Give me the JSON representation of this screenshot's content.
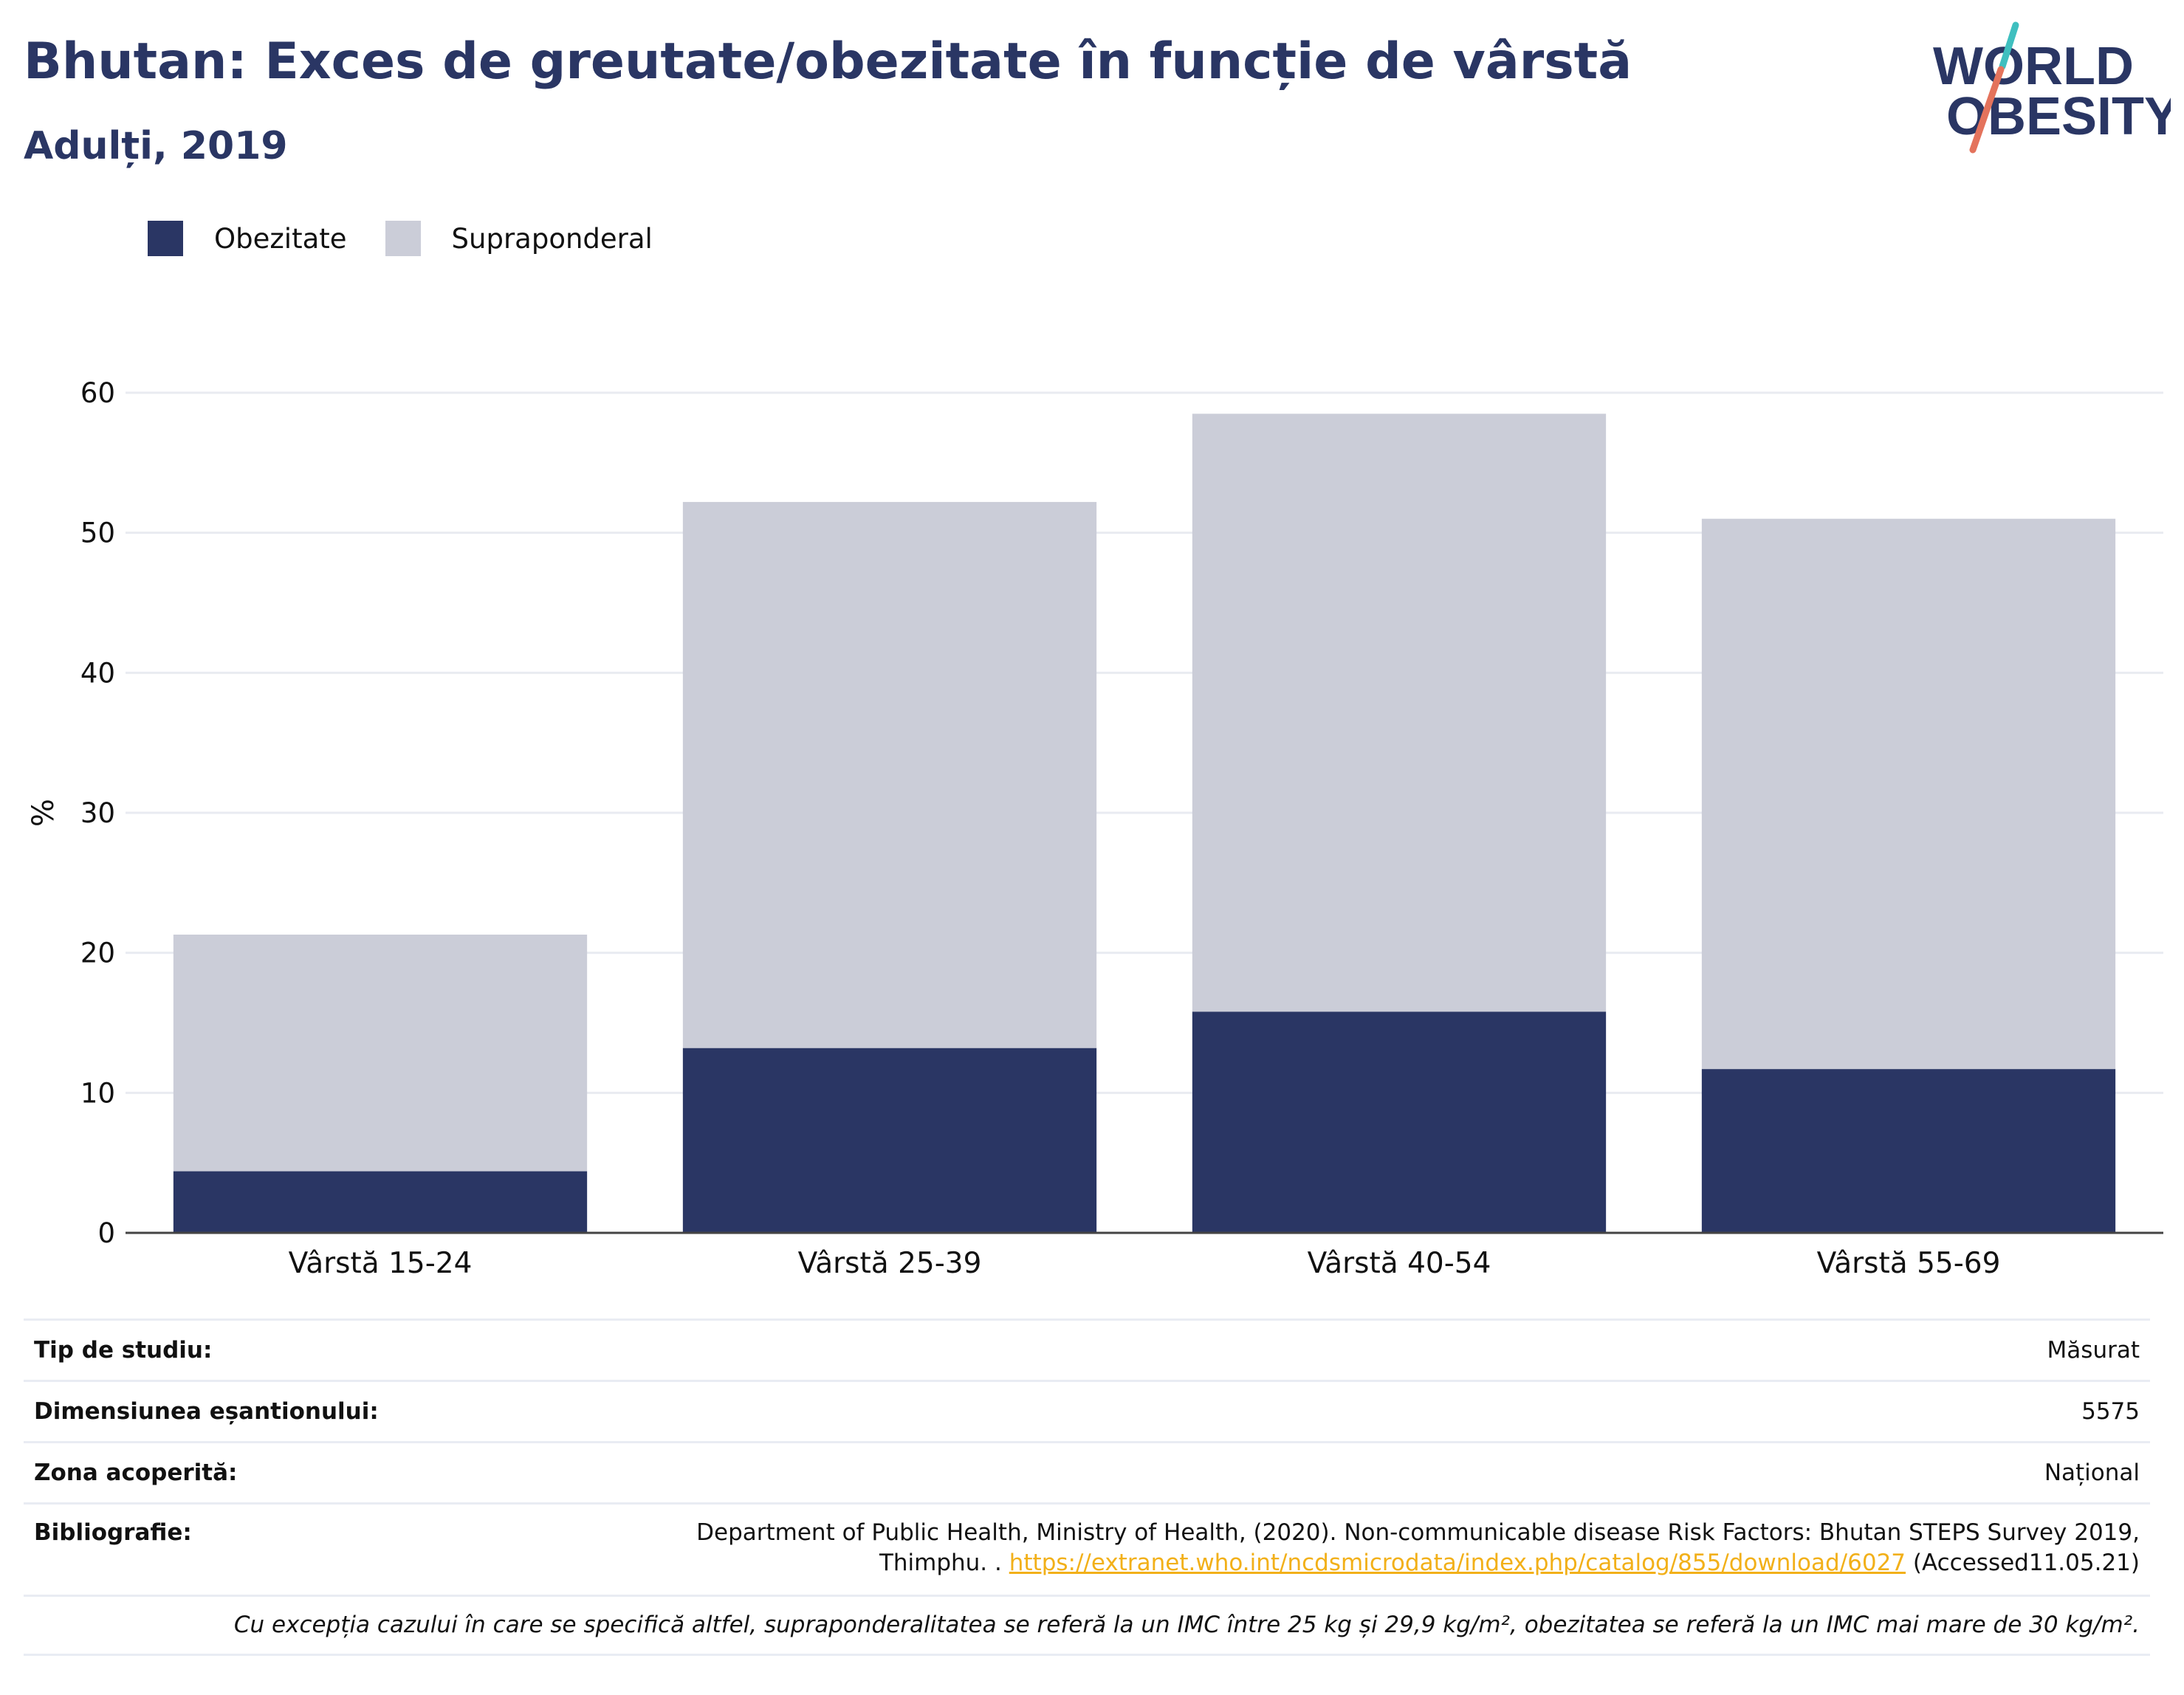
{
  "header": {
    "title": "Bhutan: Exces de greutate/obezitate în funcție de vârstă",
    "subtitle": "Adulți, 2019"
  },
  "logo": {
    "line1": "WORLD",
    "line2": "OBESITY"
  },
  "colors": {
    "obesity": "#2a3664",
    "overweight": "#cbcdd8",
    "accent_teal": "#3fbfbf",
    "accent_red": "#e4735c",
    "link": "#f2b019"
  },
  "chart_data": {
    "type": "bar",
    "stacked": true,
    "categories": [
      "Vârstă 15-24",
      "Vârstă 25-39",
      "Vârstă 40-54",
      "Vârstă 55-69"
    ],
    "series": [
      {
        "name": "Obezitate",
        "values": [
          4.4,
          13.2,
          15.8,
          11.7
        ]
      },
      {
        "name": "Supraponderal",
        "values": [
          16.9,
          39.0,
          42.7,
          39.3
        ]
      }
    ],
    "ylabel": "%",
    "ylim": [
      0,
      60
    ],
    "yticks": [
      0,
      10,
      20,
      30,
      40,
      50,
      60
    ],
    "grid": true,
    "legend_position": "top-left"
  },
  "info": {
    "study_type": {
      "label": "Tip de studiu:",
      "value": "Măsurat"
    },
    "sample_size": {
      "label": "Dimensiunea eșantionului:",
      "value": "5575"
    },
    "area": {
      "label": "Zona acoperită:",
      "value": "Național"
    },
    "bibliography": {
      "label": "Bibliografie:",
      "line1": "Department of Public Health, Ministry of Health, (2020). Non-communicable disease Risk Factors: Bhutan STEPS Survey 2019,",
      "line2_prefix": "Thimphu. . ",
      "link": "https://extranet.who.int/ncdsmicrodata/index.php/catalog/855/download/6027",
      "line2_suffix": " (Accessed11.05.21)"
    },
    "note": "Cu excepția cazului în care se specifică altfel, supraponderalitatea se referă la un IMC între 25 kg și 29,9 kg/m², obezitatea se referă la un IMC mai mare de 30 kg/m²."
  }
}
